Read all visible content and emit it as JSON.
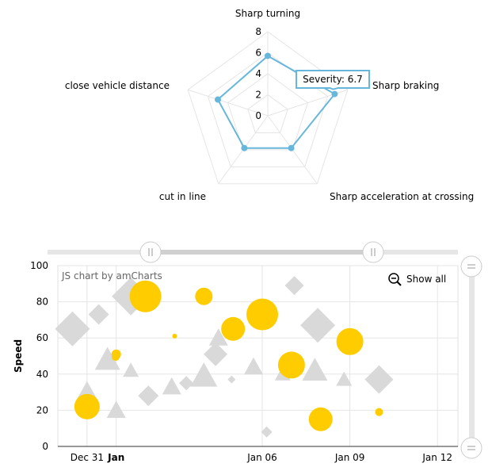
{
  "chart_data": [
    {
      "type": "radar",
      "axes": [
        "Sharp turning",
        "Sharp braking",
        "Sharp acceleration at crossing",
        "cut in line",
        "close vehicle distance"
      ],
      "values": [
        5.7,
        6.7,
        3.8,
        3.8,
        5.0
      ],
      "radial_ticks": [
        "0",
        "2",
        "4",
        "6",
        "8"
      ],
      "rlim": [
        0,
        8
      ],
      "series_color": "#67b7dc",
      "tooltip": {
        "text": "Severity: 6.7"
      }
    },
    {
      "type": "scatter",
      "credit": "JS chart by amCharts",
      "zoom_button": "Show all",
      "ylabel": "Speed",
      "ylim": [
        0,
        100
      ],
      "y_ticks": [
        "0",
        "20",
        "40",
        "60",
        "80",
        "100"
      ],
      "x_ticks": [
        {
          "label": "Dec 31",
          "day": -1
        },
        {
          "label": "Jan",
          "day": 0,
          "bold": true
        },
        {
          "label": "Jan 06",
          "day": 5
        },
        {
          "label": "Jan 09",
          "day": 8
        },
        {
          "label": "Jan 12",
          "day": 11
        }
      ],
      "xlim": [
        -2,
        11.7
      ],
      "colors": {
        "bubble": "#ffcc00",
        "shape": "#d9d9d9"
      },
      "bubbles": [
        {
          "day": -1,
          "y": 22,
          "size": 16
        },
        {
          "day": 0,
          "y": 51,
          "size": 6
        },
        {
          "day": 1,
          "y": 83,
          "size": 20
        },
        {
          "day": 2,
          "y": 61,
          "size": 3
        },
        {
          "day": 3,
          "y": 83,
          "size": 11
        },
        {
          "day": 4,
          "y": 65,
          "size": 15
        },
        {
          "day": 5,
          "y": 73,
          "size": 20
        },
        {
          "day": 6,
          "y": 45,
          "size": 17
        },
        {
          "day": 7,
          "y": 15,
          "size": 15
        },
        {
          "day": 8,
          "y": 58,
          "size": 17
        },
        {
          "day": 9,
          "y": 19,
          "size": 5
        },
        {
          "day": -0.02,
          "y": 49.5,
          "size": 5
        }
      ],
      "triangles": [
        {
          "day": -1,
          "y": 30,
          "size": 14
        },
        {
          "day": -0.3,
          "y": 48,
          "size": 16
        },
        {
          "day": 0,
          "y": 20,
          "size": 12
        },
        {
          "day": 0.5,
          "y": 42,
          "size": 10
        },
        {
          "day": 1.9,
          "y": 33,
          "size": 12
        },
        {
          "day": 3,
          "y": 39,
          "size": 17
        },
        {
          "day": 3.5,
          "y": 60,
          "size": 12
        },
        {
          "day": 4.7,
          "y": 44,
          "size": 12
        },
        {
          "day": 5.7,
          "y": 40,
          "size": 10
        },
        {
          "day": 6.8,
          "y": 42,
          "size": 16
        },
        {
          "day": 7.8,
          "y": 37,
          "size": 10
        }
      ],
      "diamonds": [
        {
          "day": -1.5,
          "y": 65,
          "size": 22
        },
        {
          "day": -0.6,
          "y": 73,
          "size": 13
        },
        {
          "day": 0.5,
          "y": 83,
          "size": 24
        },
        {
          "day": 1.1,
          "y": 28,
          "size": 13
        },
        {
          "day": 2.4,
          "y": 35,
          "size": 9
        },
        {
          "day": 3.4,
          "y": 51,
          "size": 15
        },
        {
          "day": 3.95,
          "y": 37,
          "size": 5
        },
        {
          "day": 5.15,
          "y": 8,
          "size": 7
        },
        {
          "day": 6.1,
          "y": 89,
          "size": 12
        },
        {
          "day": 6.9,
          "y": 67,
          "size": 22
        },
        {
          "day": 9,
          "y": 37,
          "size": 18
        }
      ]
    }
  ]
}
